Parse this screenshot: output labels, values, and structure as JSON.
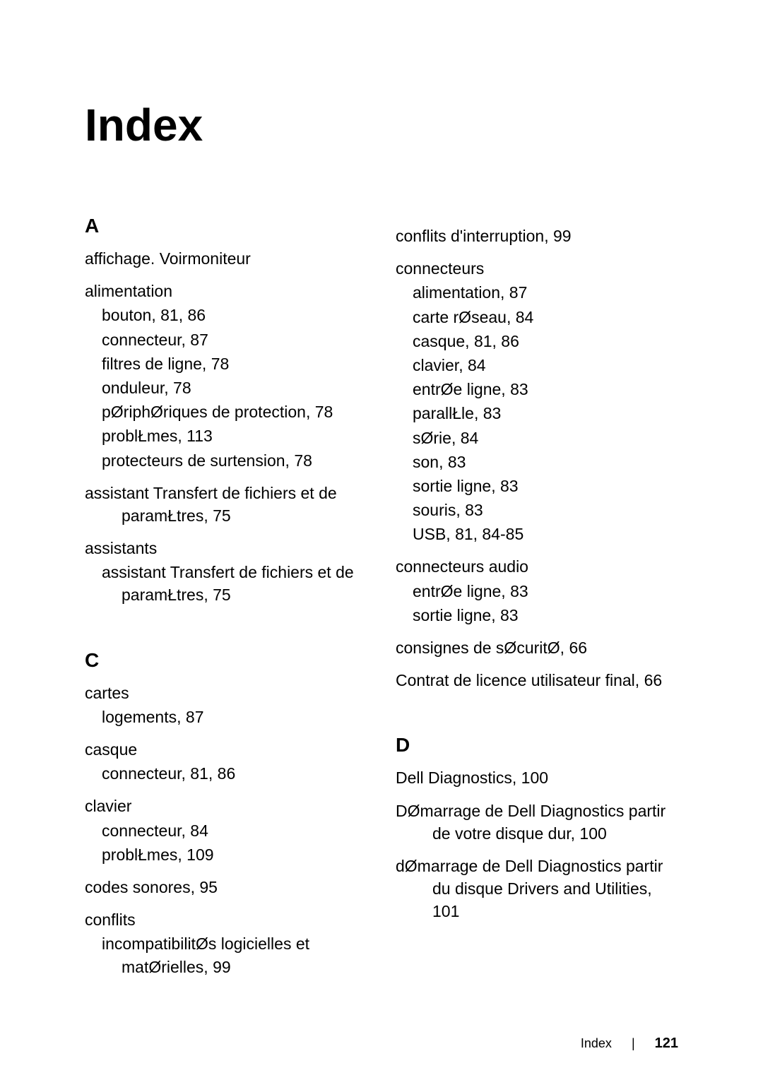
{
  "title": "Index",
  "footer": {
    "label": "Index",
    "page": "121"
  },
  "colors": {
    "text": "#000000",
    "background": "#ffffff"
  },
  "fonts": {
    "body_size": 23,
    "title_size": 64,
    "letter_size": 28
  },
  "index": {
    "left": [
      {
        "type": "letter",
        "text": "A"
      },
      {
        "type": "top",
        "text": "affichage. Voirmoniteur"
      },
      {
        "type": "top",
        "text": "alimentation"
      },
      {
        "type": "sub",
        "text": "bouton, 81, 86"
      },
      {
        "type": "sub",
        "text": "connecteur, 87"
      },
      {
        "type": "sub",
        "text": "filtres de ligne, 78"
      },
      {
        "type": "sub",
        "text": "onduleur, 78"
      },
      {
        "type": "sub",
        "text": "pØriphØriques de protection, 78"
      },
      {
        "type": "sub",
        "text": "problŁmes, 113"
      },
      {
        "type": "sub",
        "text": "protecteurs de surtension, 78"
      },
      {
        "type": "wrap",
        "text": "assistant Transfert de fichiers et de paramŁtres, 75"
      },
      {
        "type": "top",
        "text": "assistants"
      },
      {
        "type": "subwrap",
        "text": "assistant Transfert de fichiers et de paramŁtres, 75"
      },
      {
        "type": "letter",
        "text": "C",
        "spaceBefore": true
      },
      {
        "type": "top",
        "text": "cartes"
      },
      {
        "type": "sub",
        "text": "logements, 87"
      },
      {
        "type": "top",
        "text": "casque"
      },
      {
        "type": "sub",
        "text": "connecteur, 81, 86"
      },
      {
        "type": "top",
        "text": "clavier"
      },
      {
        "type": "sub",
        "text": "connecteur, 84"
      },
      {
        "type": "sub",
        "text": "problŁmes, 109"
      },
      {
        "type": "top",
        "text": "codes sonores, 95"
      },
      {
        "type": "top",
        "text": "conflits"
      },
      {
        "type": "subwrap",
        "text": "incompatibilitØs logicielles et matØrielles, 99"
      }
    ],
    "right": [
      {
        "type": "top",
        "text": "conflits d'interruption, 99"
      },
      {
        "type": "top",
        "text": "connecteurs"
      },
      {
        "type": "sub",
        "text": "alimentation, 87"
      },
      {
        "type": "sub",
        "text": "carte rØseau, 84"
      },
      {
        "type": "sub",
        "text": "casque, 81, 86"
      },
      {
        "type": "sub",
        "text": "clavier, 84"
      },
      {
        "type": "sub",
        "text": "entrØe ligne, 83"
      },
      {
        "type": "sub",
        "text": "parallŁle, 83"
      },
      {
        "type": "sub",
        "text": "sØrie, 84"
      },
      {
        "type": "sub",
        "text": "son, 83"
      },
      {
        "type": "sub",
        "text": "sortie ligne, 83"
      },
      {
        "type": "sub",
        "text": "souris, 83"
      },
      {
        "type": "sub",
        "text": "USB, 81, 84-85"
      },
      {
        "type": "top",
        "text": "connecteurs audio"
      },
      {
        "type": "sub",
        "text": "entrØe ligne, 83"
      },
      {
        "type": "sub",
        "text": "sortie ligne, 83"
      },
      {
        "type": "top",
        "text": "consignes de sØcuritØ, 66"
      },
      {
        "type": "wrap",
        "text": "Contrat de licence utilisateur final, 66"
      },
      {
        "type": "letter",
        "text": "D",
        "spaceBefore": true
      },
      {
        "type": "top",
        "text": "Dell Diagnostics, 100"
      },
      {
        "type": "wrap",
        "text": "DØmarrage de Dell Diagnostics  partir de votre disque dur, 100"
      },
      {
        "type": "wrap",
        "text": "dØmarrage de Dell Diagnostics  partir du disque Drivers and Utilities, 101"
      }
    ]
  }
}
